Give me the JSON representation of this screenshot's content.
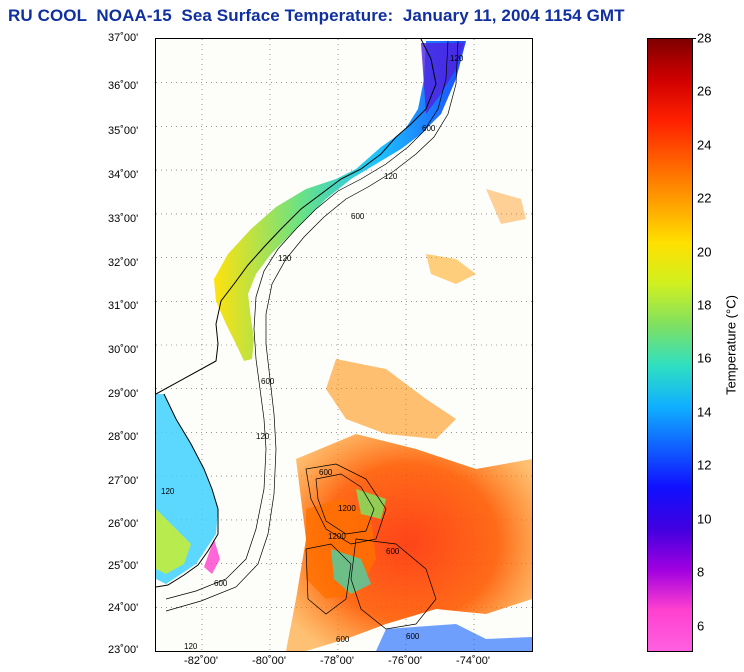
{
  "title": "RU COOL  NOAA-15  Sea Surface Temperature:  January 11, 2004 1154 GMT",
  "map": {
    "lat_labels": [
      {
        "value": 37,
        "text": "37˚00'"
      },
      {
        "value": 36,
        "text": "36˚00'"
      },
      {
        "value": 35,
        "text": "35˚00'"
      },
      {
        "value": 34,
        "text": "34˚00'"
      },
      {
        "value": 33,
        "text": "33˚00'"
      },
      {
        "value": 32,
        "text": "32˚00'"
      },
      {
        "value": 31,
        "text": "31˚00'"
      },
      {
        "value": 30,
        "text": "30˚00'"
      },
      {
        "value": 29,
        "text": "29˚00'"
      },
      {
        "value": 28,
        "text": "28˚00'"
      },
      {
        "value": 27,
        "text": "27˚00'"
      },
      {
        "value": 26,
        "text": "26˚00'"
      },
      {
        "value": 25,
        "text": "25˚00'"
      },
      {
        "value": 24,
        "text": "24˚00'"
      },
      {
        "value": 23,
        "text": "23˚00'"
      }
    ],
    "lon_labels": [
      {
        "value": -82,
        "text": "-82˚00'"
      },
      {
        "value": -80,
        "text": "-80˚00'"
      },
      {
        "value": -78,
        "text": "-78˚00'"
      },
      {
        "value": -76,
        "text": "-76˚00'"
      },
      {
        "value": -74,
        "text": "-74˚00'"
      }
    ],
    "isobath_labels": [
      "120",
      "600",
      "120",
      "600",
      "120",
      "600",
      "120",
      "600",
      "120",
      "600",
      "1200",
      "600",
      "1200",
      "600",
      "120",
      "600"
    ],
    "colors": {
      "land": "#fdfdf9",
      "coast_line": "#000000",
      "grid": "#555555"
    }
  },
  "colorbar": {
    "label": "Temperature (°C)",
    "min": 5,
    "max": 28,
    "ticks": [
      "28",
      "26",
      "24",
      "22",
      "20",
      "18",
      "16",
      "14",
      "12",
      "10",
      "8",
      "6"
    ],
    "colors": [
      "#800000",
      "#d00000",
      "#ff2000",
      "#ff6000",
      "#ffa000",
      "#ffe000",
      "#d0f020",
      "#80e060",
      "#30e0c0",
      "#10b0ff",
      "#1060ff",
      "#1010ff",
      "#4000e0",
      "#a000e0",
      "#ff40d0",
      "#ff60e0"
    ]
  }
}
